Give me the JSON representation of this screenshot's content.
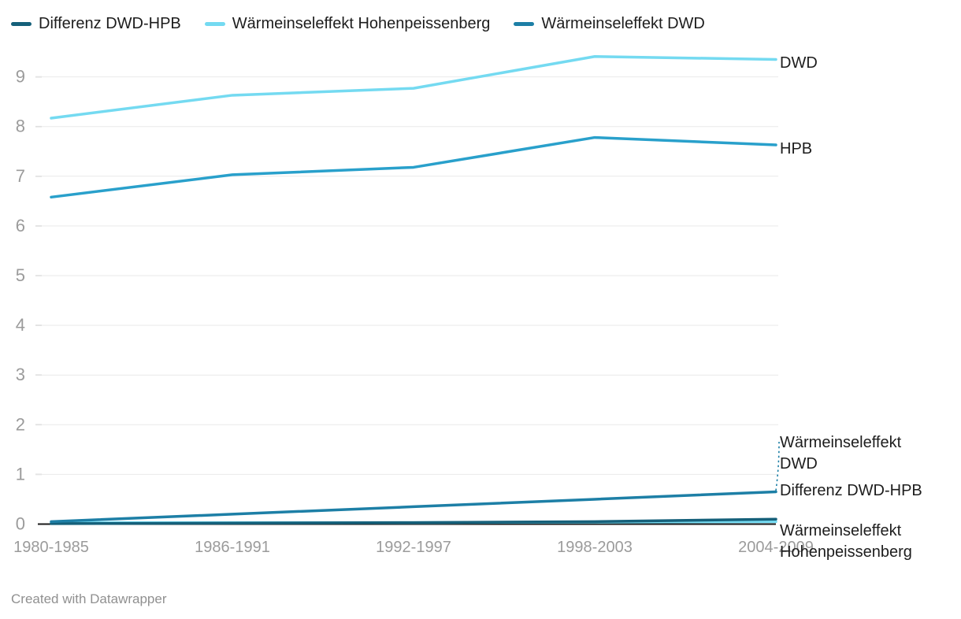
{
  "legend": {
    "items": [
      {
        "label": "Differenz DWD-HPB",
        "color": "#15607a"
      },
      {
        "label": "Wärmeinseleffekt Hohenpeissenberg",
        "color": "#74daf1"
      },
      {
        "label": "Wärmeinseleffekt DWD",
        "color": "#1d7fa6"
      }
    ]
  },
  "footer": {
    "credit": "Created with Datawrapper"
  },
  "chart_data": {
    "type": "line",
    "title": "",
    "xlabel": "",
    "ylabel": "",
    "categories": [
      "1980-1985",
      "1986-1991",
      "1992-1997",
      "1998-2003",
      "2004-2009"
    ],
    "series": [
      {
        "name": "DWD",
        "color": "#74daf1",
        "values": [
          8.17,
          8.63,
          8.77,
          9.41,
          9.35
        ],
        "end_label": "DWD"
      },
      {
        "name": "HPB",
        "color": "#29a0cb",
        "values": [
          6.58,
          7.03,
          7.18,
          7.78,
          7.63
        ],
        "end_label": "HPB"
      },
      {
        "name": "Wärmeinseleffekt DWD",
        "color": "#1d7fa6",
        "values": [
          0.05,
          0.2,
          0.35,
          0.5,
          0.65
        ],
        "end_label": "Wärmeinseleffekt DWD"
      },
      {
        "name": "Differenz DWD-HPB",
        "color": "#15607a",
        "values": [
          0.01,
          0.02,
          0.03,
          0.05,
          0.1
        ],
        "end_label": "Differenz DWD-HPB"
      },
      {
        "name": "Wärmeinseleffekt Hohenpeissenberg",
        "color": "#74daf1",
        "values": [
          0.03,
          0.03,
          0.03,
          0.04,
          0.05
        ],
        "end_label": "Wärmeinseleffekt Hohenpeissenberg"
      }
    ],
    "yticks": [
      0,
      1,
      2,
      3,
      4,
      5,
      6,
      7,
      8,
      9
    ],
    "ylim": [
      0,
      9.5
    ],
    "grid": true,
    "legend_position": "top",
    "axis_color": "#9b9b9b",
    "gridline_color": "#e9e9e9",
    "baseline_color": "#1a1a1a"
  }
}
